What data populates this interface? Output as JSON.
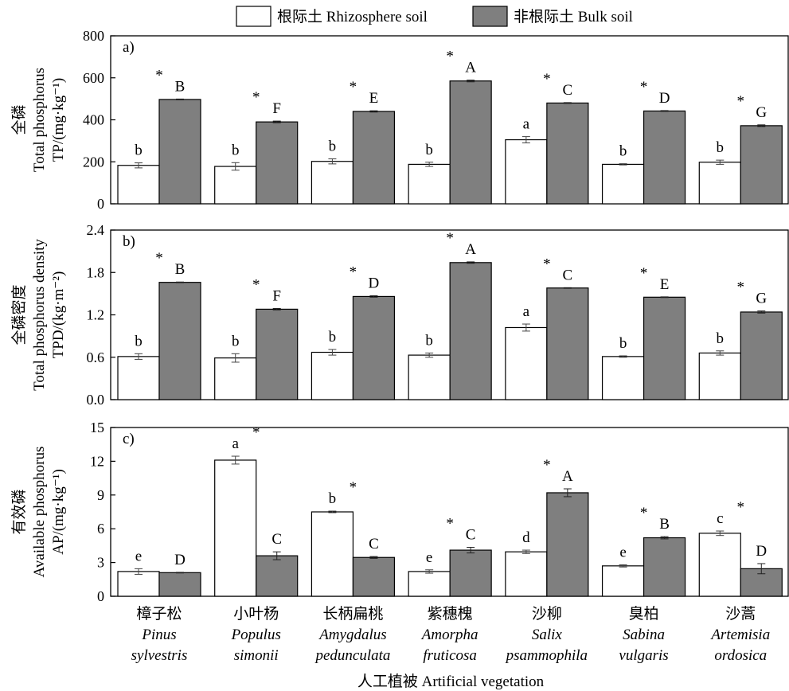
{
  "legend": {
    "items": [
      {
        "label": "根际土 Rhizosphere soil",
        "color": "#ffffff"
      },
      {
        "label": "非根际土 Bulk soil",
        "color": "#7f7f7f"
      }
    ]
  },
  "x_axis": {
    "title": "人工植被 Artificial vegetation",
    "categories": [
      {
        "cn": "樟子松",
        "latin1": "Pinus",
        "latin2": "sylvestris"
      },
      {
        "cn": "小叶杨",
        "latin1": "Populus",
        "latin2": "simonii"
      },
      {
        "cn": "长柄扁桃",
        "latin1": "Amygdalus",
        "latin2": "pedunculata"
      },
      {
        "cn": "紫穗槐",
        "latin1": "Amorpha",
        "latin2": "fruticosa"
      },
      {
        "cn": "沙柳",
        "latin1": "Salix",
        "latin2": "psammophila"
      },
      {
        "cn": "臭柏",
        "latin1": "Sabina",
        "latin2": "vulgaris"
      },
      {
        "cn": "沙蒿",
        "latin1": "Artemisia",
        "latin2": "ordosica"
      }
    ]
  },
  "chart_data": [
    {
      "type": "bar",
      "panel": "a)",
      "ylabel_cn": "全磷",
      "ylabel_en": "Total phosphorus",
      "ylabel_unit": "TP/(mg·kg⁻¹)",
      "ylim": [
        0,
        800
      ],
      "yticks": [
        "0",
        "200",
        "400",
        "600",
        "800"
      ],
      "yticks_values": [
        0,
        200,
        400,
        600,
        800
      ],
      "categories": [
        "樟子松",
        "小叶杨",
        "长柄扁桃",
        "紫穗槐",
        "沙柳",
        "臭柏",
        "沙蒿"
      ],
      "series": [
        {
          "name": "根际土 Rhizosphere soil",
          "values": [
            183,
            178,
            202,
            188,
            305,
            188,
            198
          ],
          "errors": [
            12,
            18,
            12,
            10,
            15,
            3,
            10
          ],
          "letters": [
            "b",
            "b",
            "b",
            "b",
            "a",
            "b",
            "b"
          ]
        },
        {
          "name": "非根际土 Bulk soil",
          "values": [
            497,
            390,
            440,
            585,
            480,
            442,
            372
          ],
          "errors": [
            2,
            4,
            3,
            4,
            2,
            2,
            4
          ],
          "letters": [
            "B",
            "F",
            "E",
            "A",
            "C",
            "D",
            "G"
          ]
        }
      ],
      "significance": [
        "*",
        "*",
        "*",
        "*",
        "*",
        "*",
        "*"
      ]
    },
    {
      "type": "bar",
      "panel": "b)",
      "ylabel_cn": "全磷密度",
      "ylabel_en": "Total phosphorus density",
      "ylabel_unit": "TPD/(kg·m⁻²)",
      "ylim": [
        0,
        2.4
      ],
      "yticks": [
        "0.0",
        "0.6",
        "1.2",
        "1.8",
        "2.4"
      ],
      "yticks_values": [
        0,
        0.6,
        1.2,
        1.8,
        2.4
      ],
      "categories": [
        "樟子松",
        "小叶杨",
        "长柄扁桃",
        "紫穗槐",
        "沙柳",
        "臭柏",
        "沙蒿"
      ],
      "series": [
        {
          "name": "根际土 Rhizosphere soil",
          "values": [
            0.61,
            0.59,
            0.67,
            0.63,
            1.02,
            0.61,
            0.66
          ],
          "errors": [
            0.04,
            0.06,
            0.04,
            0.03,
            0.05,
            0.01,
            0.03
          ],
          "letters": [
            "b",
            "b",
            "b",
            "b",
            "a",
            "b",
            "b"
          ]
        },
        {
          "name": "非根际土 Bulk soil",
          "values": [
            1.66,
            1.28,
            1.46,
            1.94,
            1.58,
            1.45,
            1.24
          ],
          "errors": [
            0.005,
            0.01,
            0.01,
            0.01,
            0.005,
            0.005,
            0.015
          ],
          "letters": [
            "B",
            "F",
            "D",
            "A",
            "C",
            "E",
            "G"
          ]
        }
      ],
      "significance": [
        "*",
        "*",
        "*",
        "*",
        "*",
        "*",
        "*"
      ]
    },
    {
      "type": "bar",
      "panel": "c)",
      "ylabel_cn": "有效磷",
      "ylabel_en": "Available phosphorus",
      "ylabel_unit": "AP/(mg·kg⁻¹)",
      "ylim": [
        0,
        15
      ],
      "yticks": [
        "0",
        "3",
        "6",
        "9",
        "12",
        "15"
      ],
      "yticks_values": [
        0,
        3,
        6,
        9,
        12,
        15
      ],
      "categories": [
        "樟子松",
        "小叶杨",
        "长柄扁桃",
        "紫穗槐",
        "沙柳",
        "臭柏",
        "沙蒿"
      ],
      "series": [
        {
          "name": "根际土 Rhizosphere soil",
          "values": [
            2.2,
            12.1,
            7.5,
            2.2,
            3.95,
            2.7,
            5.6
          ],
          "errors": [
            0.25,
            0.35,
            0.07,
            0.15,
            0.15,
            0.1,
            0.2
          ],
          "letters": [
            "e",
            "a",
            "b",
            "e",
            "d",
            "e",
            "c"
          ]
        },
        {
          "name": "非根际土 Bulk soil",
          "values": [
            2.1,
            3.6,
            3.45,
            4.1,
            9.2,
            5.2,
            2.45
          ],
          "errors": [
            0.03,
            0.35,
            0.08,
            0.25,
            0.35,
            0.1,
            0.45
          ],
          "letters": [
            "D",
            "C",
            "C",
            "C",
            "A",
            "B",
            "D"
          ]
        }
      ],
      "significance": [
        "",
        "*",
        "*",
        "*",
        "*",
        "*",
        "*"
      ]
    }
  ]
}
